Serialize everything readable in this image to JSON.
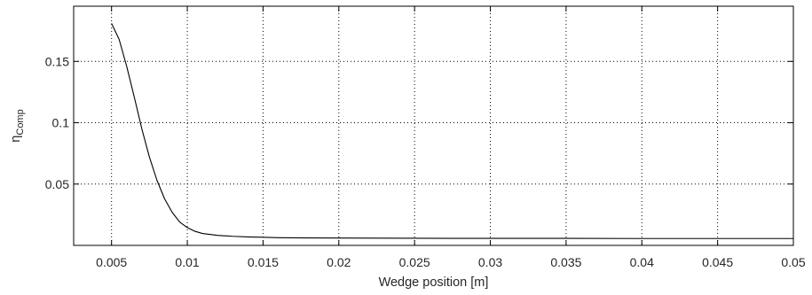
{
  "chart_data": {
    "type": "line",
    "title": "",
    "xlabel": "Wedge position [m]",
    "ylabel": {
      "base": "η",
      "subscript": "Comp"
    },
    "xlim": [
      0.0025,
      0.05
    ],
    "ylim": [
      0.0,
      0.195
    ],
    "grid": true,
    "grid_style": "dotted",
    "xticks": [
      0.005,
      0.01,
      0.015,
      0.02,
      0.025,
      0.03,
      0.035,
      0.04,
      0.045,
      0.05
    ],
    "xtick_labels": [
      "0.005",
      "0.01",
      "0.015",
      "0.02",
      "0.025",
      "0.03",
      "0.035",
      "0.04",
      "0.045",
      "0.05"
    ],
    "yticks": [
      0.05,
      0.1,
      0.15
    ],
    "ytick_labels": [
      "0.05",
      "0.1",
      "0.15"
    ],
    "series": [
      {
        "color": "#000000",
        "x": [
          0.005,
          0.0055,
          0.006,
          0.0065,
          0.007,
          0.0075,
          0.008,
          0.0085,
          0.009,
          0.0095,
          0.01,
          0.0105,
          0.011,
          0.012,
          0.013,
          0.014,
          0.015,
          0.016,
          0.018,
          0.02,
          0.025,
          0.03,
          0.035,
          0.04,
          0.045,
          0.05
        ],
        "y": [
          0.181,
          0.168,
          0.146,
          0.121,
          0.095,
          0.072,
          0.053,
          0.038,
          0.027,
          0.019,
          0.0145,
          0.0115,
          0.0097,
          0.0082,
          0.0074,
          0.0069,
          0.0066,
          0.0063,
          0.0061,
          0.006,
          0.0058,
          0.0057,
          0.0057,
          0.0056,
          0.0056,
          0.0056
        ]
      }
    ]
  }
}
